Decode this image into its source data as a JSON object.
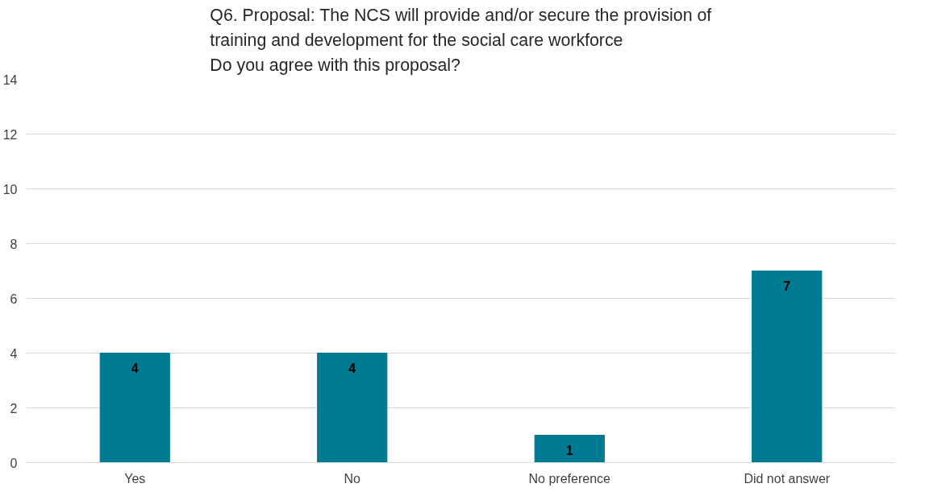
{
  "chart_data": {
    "type": "bar",
    "title": "Q6. Proposal: The NCS will provide and/or secure the provision of\ntraining and development for the social care workforce\nDo you agree with this proposal?",
    "categories": [
      "Yes",
      "No",
      "No preference",
      "Did not answer"
    ],
    "values": [
      4,
      4,
      1,
      7
    ],
    "color": "#007a91",
    "ylim": [
      0,
      14
    ],
    "yticks": [
      0,
      2,
      4,
      6,
      8,
      10,
      12,
      14
    ],
    "grid": "y",
    "data_labels": true
  }
}
